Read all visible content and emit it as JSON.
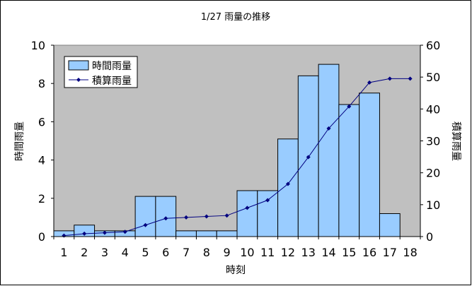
{
  "chart_data": {
    "type": "bar+line",
    "title": "1/27 雨量の推移",
    "xlabel": "時刻",
    "ylabel_left": "時間雨量",
    "ylabel_right": "積算雨量",
    "categories": [
      "1",
      "2",
      "3",
      "4",
      "5",
      "6",
      "7",
      "8",
      "9",
      "10",
      "11",
      "12",
      "13",
      "14",
      "15",
      "16",
      "17",
      "18"
    ],
    "series": [
      {
        "name": "時間雨量",
        "type": "bar",
        "axis": "left",
        "color": "#99CCFF",
        "values": [
          0.3,
          0.6,
          0.3,
          0.3,
          2.1,
          2.1,
          0.3,
          0.3,
          0.3,
          2.4,
          2.4,
          5.1,
          8.4,
          9.0,
          6.9,
          7.5,
          1.2,
          0
        ]
      },
      {
        "name": "積算雨量",
        "type": "line",
        "axis": "right",
        "color": "#000080",
        "values": [
          0.3,
          0.9,
          1.2,
          1.5,
          3.6,
          5.7,
          6.0,
          6.3,
          6.6,
          9.0,
          11.4,
          16.5,
          24.9,
          33.9,
          40.8,
          48.3,
          49.5,
          49.5
        ]
      }
    ],
    "ylim_left": [
      0,
      10
    ],
    "yticks_left": [
      0,
      2,
      4,
      6,
      8,
      10
    ],
    "ylim_right": [
      0,
      60
    ],
    "yticks_right": [
      0,
      10,
      20,
      30,
      40,
      50,
      60
    ],
    "grid": false,
    "plot_background": "#C0C0C0",
    "legend_position": "top-left"
  }
}
